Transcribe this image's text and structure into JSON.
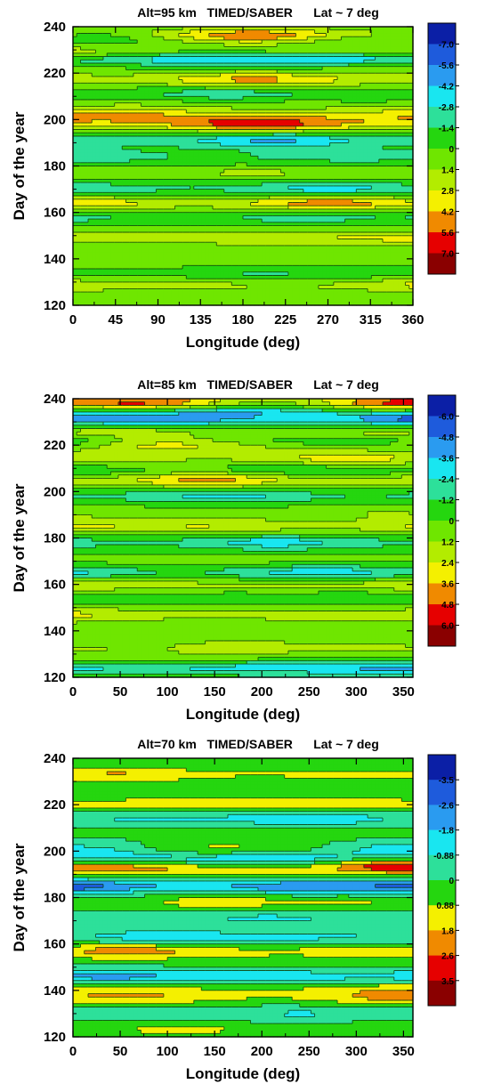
{
  "chart_data": [
    {
      "type": "heatmap",
      "title": "Alt=95 km   TIMED/SABER      Lat ~ 7 deg",
      "xlabel": "Longitude (deg)",
      "ylabel": "Day of the year",
      "xlim": [
        0,
        360
      ],
      "ylim": [
        120,
        240
      ],
      "xticks": [
        0,
        45,
        90,
        135,
        180,
        225,
        270,
        315,
        360
      ],
      "yticks": [
        120,
        140,
        160,
        180,
        200,
        220,
        240
      ],
      "colorbar": {
        "labels": [
          "-7.0",
          "-5.6",
          "-4.2",
          "-2.8",
          "-1.4",
          "0",
          "1.4",
          "2.8",
          "4.2",
          "5.6",
          "7.0"
        ],
        "colors": [
          "#0b1fa6",
          "#1e5bdc",
          "#2a9bf0",
          "#19e6f0",
          "#2de09a",
          "#25d60f",
          "#6fe600",
          "#b3ec00",
          "#f4f000",
          "#f08a00",
          "#e60000",
          "#8a0000"
        ]
      },
      "bands": [
        {
          "day": 122,
          "value": 0.8,
          "dx": 260,
          "amp": 2.5
        },
        {
          "day": 129,
          "value": 2.9,
          "dx": 10,
          "amp": 1.6
        },
        {
          "day": 133,
          "value": -1.6,
          "dx": 220,
          "amp": 2.0
        },
        {
          "day": 140,
          "value": 1.1,
          "dx": 60,
          "amp": 2.2
        },
        {
          "day": 149,
          "value": 3.4,
          "dx": 285,
          "amp": 1.4
        },
        {
          "day": 158,
          "value": -2.0,
          "dx": 285,
          "amp": 1.8
        },
        {
          "day": 164,
          "value": 4.6,
          "dx": 290,
          "amp": 1.6
        },
        {
          "day": 170,
          "value": -3.1,
          "dx": 275,
          "amp": 1.6
        },
        {
          "day": 177,
          "value": 1.6,
          "dx": 150,
          "amp": 1.8
        },
        {
          "day": 184,
          "value": -2.4,
          "dx": 0,
          "amp": 1.5
        },
        {
          "day": 191,
          "value": -3.8,
          "dx": 205,
          "amp": 1.4
        },
        {
          "day": 198,
          "value": 5.3,
          "dx": 205,
          "amp": 1.4
        },
        {
          "day": 202,
          "value": 3.5,
          "dx": 60,
          "amp": 1.3
        },
        {
          "day": 207,
          "value": 0.9,
          "dx": 120,
          "amp": 2.0
        },
        {
          "day": 211,
          "value": -2.2,
          "dx": 180,
          "amp": 1.6
        },
        {
          "day": 217,
          "value": 4.0,
          "dx": 205,
          "amp": 1.4
        },
        {
          "day": 223,
          "value": 1.3,
          "dx": 330,
          "amp": 2.0
        },
        {
          "day": 226,
          "value": -5.9,
          "dx": 215,
          "amp": 1.3
        },
        {
          "day": 229,
          "value": 3.0,
          "dx": 10,
          "amp": 1.4
        },
        {
          "day": 235,
          "value": -3.6,
          "dx": 5,
          "amp": 1.4
        },
        {
          "day": 236,
          "value": 6.4,
          "dx": 215,
          "amp": 1.4
        }
      ]
    },
    {
      "type": "heatmap",
      "title": "Alt=85 km   TIMED/SABER      Lat ~ 7 deg",
      "xlabel": "Longitude (deg)",
      "ylabel": "Day of the year",
      "xlim": [
        0,
        360
      ],
      "ylim": [
        120,
        240
      ],
      "xticks": [
        0,
        50,
        100,
        150,
        200,
        250,
        300,
        350
      ],
      "yticks": [
        120,
        140,
        160,
        180,
        200,
        220,
        240
      ],
      "colorbar": {
        "labels": [
          "-6.0",
          "-4.8",
          "-3.6",
          "-2.4",
          "-1.2",
          "0",
          "1.2",
          "2.4",
          "3.6",
          "4.8",
          "6.0"
        ],
        "colors": [
          "#0b1fa6",
          "#1e5bdc",
          "#2a9bf0",
          "#19e6f0",
          "#2de09a",
          "#25d60f",
          "#6fe600",
          "#b3ec00",
          "#f4f000",
          "#f08a00",
          "#e60000",
          "#8a0000"
        ]
      },
      "bands": [
        {
          "day": 124,
          "value": -4.2,
          "dx": 290,
          "amp": 1.4
        },
        {
          "day": 128,
          "value": 1.0,
          "dx": 70,
          "amp": 2.0
        },
        {
          "day": 133,
          "value": 1.8,
          "dx": 200,
          "amp": 2.2
        },
        {
          "day": 141,
          "value": 0.6,
          "dx": 100,
          "amp": 2.4
        },
        {
          "day": 147,
          "value": 2.4,
          "dx": 0,
          "amp": 1.5
        },
        {
          "day": 154,
          "value": -1.0,
          "dx": 250,
          "amp": 2.0
        },
        {
          "day": 160,
          "value": 2.5,
          "dx": 0,
          "amp": 1.5
        },
        {
          "day": 165,
          "value": -3.0,
          "dx": 290,
          "amp": 1.5
        },
        {
          "day": 170,
          "value": 0.6,
          "dx": 140,
          "amp": 2.2
        },
        {
          "day": 178,
          "value": -2.6,
          "dx": 220,
          "amp": 1.6
        },
        {
          "day": 185,
          "value": 2.8,
          "dx": 60,
          "amp": 1.6
        },
        {
          "day": 191,
          "value": 1.0,
          "dx": 320,
          "amp": 2.0
        },
        {
          "day": 198,
          "value": -2.5,
          "dx": 150,
          "amp": 1.6
        },
        {
          "day": 205,
          "value": 3.6,
          "dx": 150,
          "amp": 1.6
        },
        {
          "day": 209,
          "value": -1.6,
          "dx": 300,
          "amp": 1.6
        },
        {
          "day": 214,
          "value": 2.6,
          "dx": 300,
          "amp": 1.5
        },
        {
          "day": 220,
          "value": 3.8,
          "dx": 140,
          "amp": 1.6
        },
        {
          "day": 221,
          "value": -2.8,
          "dx": 290,
          "amp": 1.6
        },
        {
          "day": 226,
          "value": 2.0,
          "dx": 20,
          "amp": 1.6
        },
        {
          "day": 231,
          "value": -4.6,
          "dx": 20,
          "amp": 1.4
        },
        {
          "day": 235,
          "value": -3.2,
          "dx": 140,
          "amp": 1.5
        },
        {
          "day": 238,
          "value": 5.6,
          "dx": 30,
          "amp": 1.4
        }
      ]
    },
    {
      "type": "heatmap",
      "title": "Alt=70 km   TIMED/SABER      Lat ~ 7 deg",
      "xlabel": "Longitude (deg)",
      "ylabel": "Day of the year",
      "xlim": [
        0,
        360
      ],
      "ylim": [
        120,
        240
      ],
      "xticks": [
        0,
        50,
        100,
        150,
        200,
        250,
        300,
        350
      ],
      "yticks": [
        120,
        140,
        160,
        180,
        200,
        220,
        240
      ],
      "colorbar": {
        "labels": [
          "-3.5",
          "-2.6",
          "-1.8",
          "-0.88",
          "0",
          "0.88",
          "1.8",
          "2.6",
          "3.5"
        ],
        "colors": [
          "#0b1fa6",
          "#1e5bdc",
          "#2a9bf0",
          "#19e6f0",
          "#2de09a",
          "#25d60f",
          "#f4f000",
          "#f08a00",
          "#e60000",
          "#8a0000"
        ]
      },
      "bands": [
        {
          "day": 123,
          "value": 1.0,
          "dx": 100,
          "amp": 2.0
        },
        {
          "day": 130,
          "value": -0.9,
          "dx": 200,
          "amp": 2.2
        },
        {
          "day": 137,
          "value": 1.7,
          "dx": 20,
          "amp": 1.6
        },
        {
          "day": 141,
          "value": 1.1,
          "dx": 330,
          "amp": 1.8
        },
        {
          "day": 146,
          "value": -2.2,
          "dx": 80,
          "amp": 1.6
        },
        {
          "day": 152,
          "value": 0.4,
          "dx": 200,
          "amp": 2.2
        },
        {
          "day": 157,
          "value": 1.9,
          "dx": 60,
          "amp": 1.6
        },
        {
          "day": 163,
          "value": -1.4,
          "dx": 150,
          "amp": 1.6
        },
        {
          "day": 171,
          "value": -1.0,
          "dx": 250,
          "amp": 2.0
        },
        {
          "day": 178,
          "value": 1.3,
          "dx": 180,
          "amp": 2.2
        },
        {
          "day": 185,
          "value": -3.3,
          "dx": 340,
          "amp": 1.5
        },
        {
          "day": 190,
          "value": 1.0,
          "dx": 120,
          "amp": 2.0
        },
        {
          "day": 194,
          "value": 3.3,
          "dx": 350,
          "amp": 1.5
        },
        {
          "day": 196,
          "value": -3.0,
          "dx": 145,
          "amp": 1.4
        },
        {
          "day": 201,
          "value": -2.6,
          "dx": 20,
          "amp": 1.4
        },
        {
          "day": 201,
          "value": 2.8,
          "dx": 145,
          "amp": 1.4
        },
        {
          "day": 208,
          "value": 0.4,
          "dx": 240,
          "amp": 2.2
        },
        {
          "day": 214,
          "value": -1.5,
          "dx": 210,
          "amp": 1.6
        },
        {
          "day": 220,
          "value": 1.8,
          "dx": 210,
          "amp": 1.4
        },
        {
          "day": 226,
          "value": 0.3,
          "dx": 80,
          "amp": 2.2
        },
        {
          "day": 233,
          "value": 1.6,
          "dx": 60,
          "amp": 1.6
        }
      ]
    }
  ]
}
